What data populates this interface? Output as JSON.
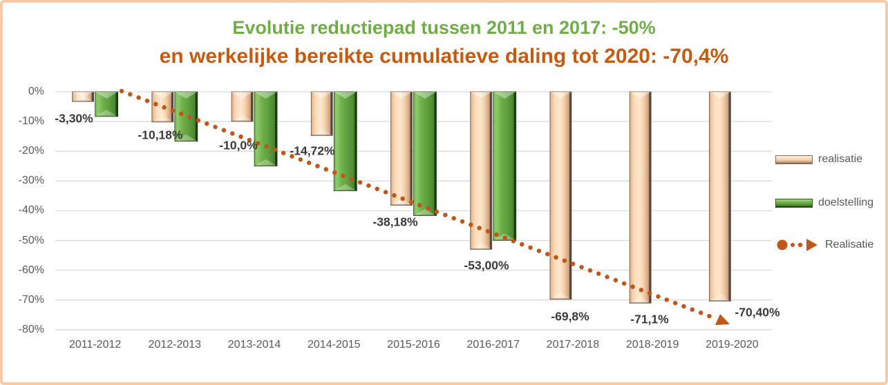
{
  "title": {
    "line1": "Evolutie reductiepad tussen 2011 en 2017: -50%",
    "line2": "en werkelijke bereikte cumulatieve daling tot 2020: -70,4%"
  },
  "legend": {
    "items": [
      {
        "label": "realisatie",
        "swatch": "beige-3d-bar"
      },
      {
        "label": "doelstelling",
        "swatch": "green-3d-bar"
      },
      {
        "label": "Realisatie",
        "swatch": "orange-dotted-arrow"
      }
    ],
    "position": "right"
  },
  "colors": {
    "frame_border": "#f8cba6",
    "title_line1": "#70ad47",
    "title_line2": "#c55a11",
    "realisatie_bar_light": "#fde6cb",
    "realisatie_bar_dark": "#564740",
    "doelstelling_bar_light": "#8ecb6b",
    "doelstelling_bar_dark": "#1d3a10",
    "trendline": "#c0561a",
    "gridline": "#d9d9d9",
    "axis_text": "#595959",
    "data_label": "#3a3a3a"
  },
  "chart_data": {
    "type": "bar",
    "title": "Evolutie reductiepad tussen 2011 en 2017: -50% en werkelijke bereikte cumulatieve daling tot 2020: -70,4%",
    "categories": [
      "2011-2012",
      "2012-2013",
      "2013-2014",
      "2014-2015",
      "2015-2016",
      "2016-2017",
      "2017-2018",
      "2018-2019",
      "2019-2020"
    ],
    "y_axis": {
      "ticks": [
        "0%",
        "-10%",
        "-20%",
        "-30%",
        "-40%",
        "-50%",
        "-60%",
        "-70%",
        "-80%"
      ],
      "max": 0,
      "min": -80,
      "unit": "%",
      "grid": true
    },
    "series": [
      {
        "name": "realisatie",
        "values": [
          -3.3,
          -10.18,
          -10.0,
          -14.72,
          -38.18,
          -53.0,
          -69.8,
          -71.1,
          -70.4
        ],
        "labels": [
          "-3,30%",
          "-10,18%",
          "-10,0%",
          "-14,72%",
          "-38,18%",
          "-53,00%",
          "-69,8%",
          "-71,1%",
          "-70,40%"
        ]
      },
      {
        "name": "doelstelling",
        "values": [
          -8.33,
          -16.67,
          -25.0,
          -33.33,
          -41.67,
          -50.0,
          null,
          null,
          null
        ],
        "labels": []
      }
    ],
    "trendline": {
      "name": "Realisatie",
      "kind": "linear",
      "of_series": "realisatie",
      "style": "dotted",
      "approx_start_pct": 0,
      "approx_end_pct": -75
    },
    "legend_position": "right"
  }
}
